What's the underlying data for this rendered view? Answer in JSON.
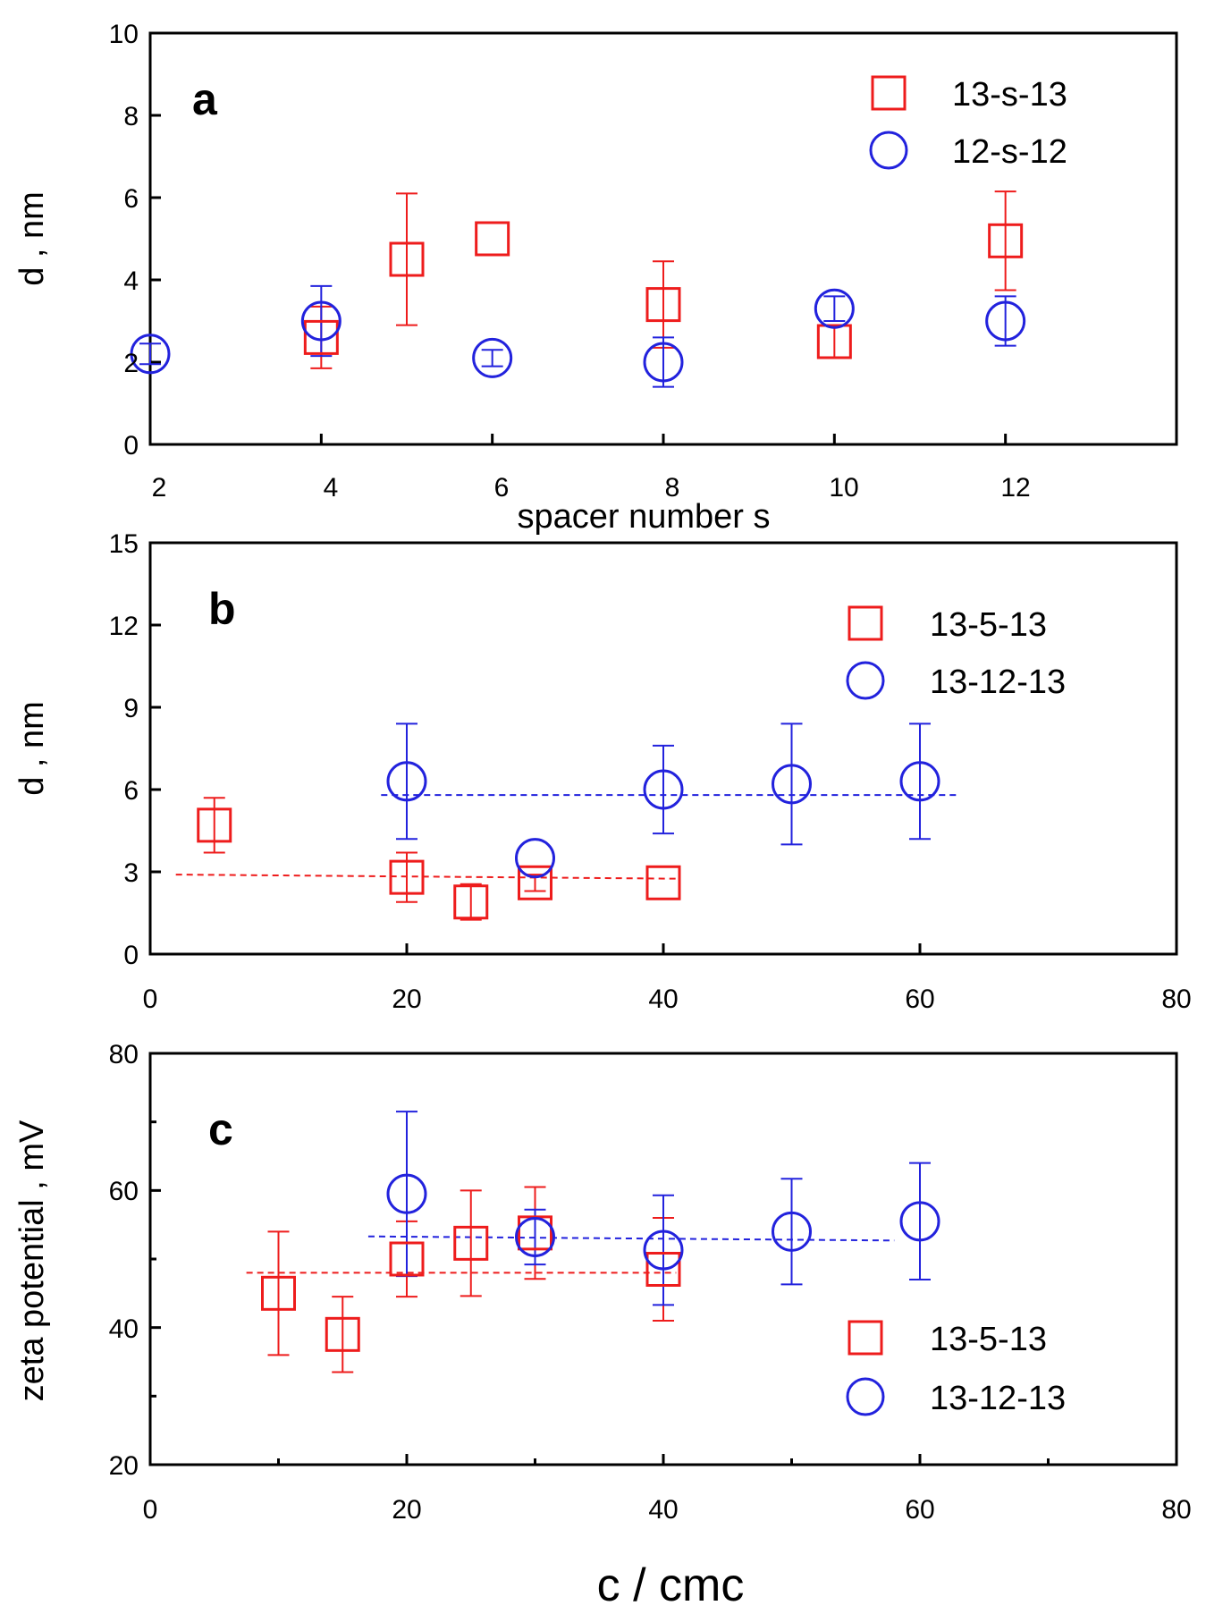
{
  "colors": {
    "red": "#ee1c1c",
    "blue": "#2222dd",
    "axis": "#000000"
  },
  "chart_data": [
    {
      "type": "scatter",
      "panel": "a",
      "xlabel": "spacer number s",
      "ylabel": "d , nm",
      "xlim": [
        2,
        14
      ],
      "ylim": [
        0,
        10
      ],
      "xticks": [
        2,
        4,
        6,
        8,
        10,
        12
      ],
      "yticks": [
        0,
        2,
        4,
        6,
        8,
        10
      ],
      "legend_position": "top-right",
      "series": [
        {
          "name": "13-s-13",
          "marker": "square",
          "color": "#ee1c1c",
          "points": [
            {
              "x": 4,
              "y": 2.6,
              "err": 0.75
            },
            {
              "x": 5,
              "y": 4.5,
              "err": 1.6
            },
            {
              "x": 6,
              "y": 5.0,
              "err": 0
            },
            {
              "x": 8,
              "y": 3.4,
              "err": 1.05
            },
            {
              "x": 10,
              "y": 2.5,
              "err": 0.4
            },
            {
              "x": 12,
              "y": 4.95,
              "err": 1.2
            }
          ]
        },
        {
          "name": "12-s-12",
          "marker": "circle",
          "color": "#2222dd",
          "points": [
            {
              "x": 2,
              "y": 2.2,
              "err": 0.25
            },
            {
              "x": 4,
              "y": 3.0,
              "err": 0.85
            },
            {
              "x": 6,
              "y": 2.1,
              "err": 0.2
            },
            {
              "x": 8,
              "y": 2.0,
              "err": 0.6
            },
            {
              "x": 10,
              "y": 3.3,
              "err": 0.3
            },
            {
              "x": 12,
              "y": 3.0,
              "err": 0.6
            }
          ]
        }
      ]
    },
    {
      "type": "scatter",
      "panel": "b",
      "xlabel": "",
      "ylabel": "d , nm",
      "xlim": [
        0,
        80
      ],
      "ylim": [
        0,
        15
      ],
      "xticks": [
        0,
        20,
        40,
        60,
        80
      ],
      "yticks": [
        0,
        3,
        6,
        9,
        12,
        15
      ],
      "legend_position": "top-right",
      "series": [
        {
          "name": "13-5-13",
          "marker": "square",
          "color": "#ee1c1c",
          "points": [
            {
              "x": 5,
              "y": 4.7,
              "err": 1.0
            },
            {
              "x": 20,
              "y": 2.8,
              "err": 0.9
            },
            {
              "x": 25,
              "y": 1.9,
              "err": 0.65
            },
            {
              "x": 30,
              "y": 2.6,
              "err": 0.3
            },
            {
              "x": 40,
              "y": 2.6,
              "err": 0
            }
          ],
          "fit_line": {
            "x": [
              2,
              41
            ],
            "y": [
              2.9,
              2.75
            ]
          }
        },
        {
          "name": "13-12-13",
          "marker": "circle",
          "color": "#2222dd",
          "points": [
            {
              "x": 20,
              "y": 6.3,
              "err": 2.1
            },
            {
              "x": 30,
              "y": 3.5,
              "err": 0
            },
            {
              "x": 40,
              "y": 6.0,
              "err": 1.6
            },
            {
              "x": 50,
              "y": 6.2,
              "err": 2.2
            },
            {
              "x": 60,
              "y": 6.3,
              "err": 2.1
            }
          ],
          "fit_line": {
            "x": [
              18,
              63
            ],
            "y": [
              5.8,
              5.8
            ]
          }
        }
      ]
    },
    {
      "type": "scatter",
      "panel": "c",
      "xlabel": "c / cmc",
      "ylabel": "zeta potential , mV",
      "xlim": [
        0,
        80
      ],
      "ylim": [
        20,
        80
      ],
      "xticks": [
        0,
        20,
        40,
        60,
        80
      ],
      "yticks": [
        20,
        40,
        60,
        80
      ],
      "legend_position": "bottom-right",
      "series": [
        {
          "name": "13-5-13",
          "marker": "square",
          "color": "#ee1c1c",
          "points": [
            {
              "x": 10,
              "y": 45,
              "err": 9
            },
            {
              "x": 15,
              "y": 39,
              "err": 5.5
            },
            {
              "x": 20,
              "y": 50,
              "err": 5.5
            },
            {
              "x": 25,
              "y": 52.3,
              "err": 7.7
            },
            {
              "x": 30,
              "y": 53.8,
              "err": 6.7
            },
            {
              "x": 40,
              "y": 48.5,
              "err": 7.5
            }
          ],
          "fit_line": {
            "x": [
              7.5,
              41
            ],
            "y": [
              48,
              48
            ]
          }
        },
        {
          "name": "13-12-13",
          "marker": "circle",
          "color": "#2222dd",
          "points": [
            {
              "x": 20,
              "y": 59.5,
              "err": 12
            },
            {
              "x": 30,
              "y": 53.2,
              "err": 4
            },
            {
              "x": 40,
              "y": 51.3,
              "err": 8
            },
            {
              "x": 50,
              "y": 54,
              "err": 7.7
            },
            {
              "x": 60,
              "y": 55.5,
              "err": 8.5
            }
          ],
          "fit_line": {
            "x": [
              17,
              58
            ],
            "y": [
              53.3,
              52.7
            ]
          }
        }
      ]
    }
  ]
}
